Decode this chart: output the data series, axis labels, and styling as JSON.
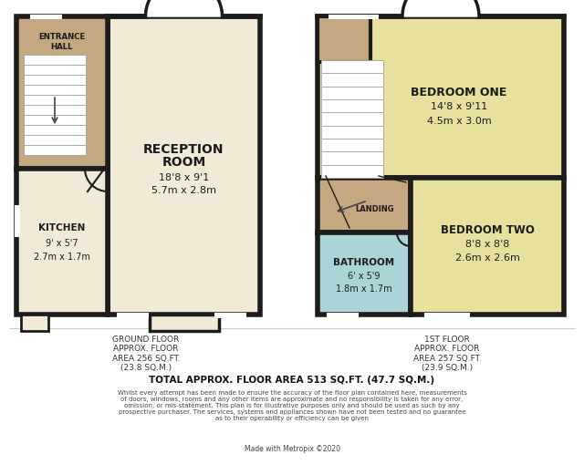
{
  "wall_color": "#1c1c1c",
  "cream": "#f0ead6",
  "tan": "#c4a882",
  "blue": "#aad4d8",
  "yellow": "#e8e19e",
  "white": "#ffffff",
  "gray_step": "#d0d0d0",
  "ground_floor_text": "GROUND FLOOR\nAPPROX. FLOOR\nAREA 256 SQ.FT.\n(23.8 SQ.M.)",
  "first_floor_text": "1ST FLOOR\nAPPROX. FLOOR\nAREA 257 SQ.FT.\n(23.9 SQ.M.)",
  "total_text": "TOTAL APPROX. FLOOR AREA 513 SQ.FT. (47.7 SQ.M.)",
  "disclaimer": "Whilst every attempt has been made to ensure the accuracy of the floor plan contained here, measurements\nof doors, windows, rooms and any other items are approximate and no responsibility is taken for any error,\nomission, or mis-statement. This plan is for illustrative purposes only and should be used as such by any\nprospective purchaser. The services, systems and appliances shown have not been tested and no guarantee\nas to their operability or efficiency can be given",
  "made_with": "Made with Metropix ©2020"
}
